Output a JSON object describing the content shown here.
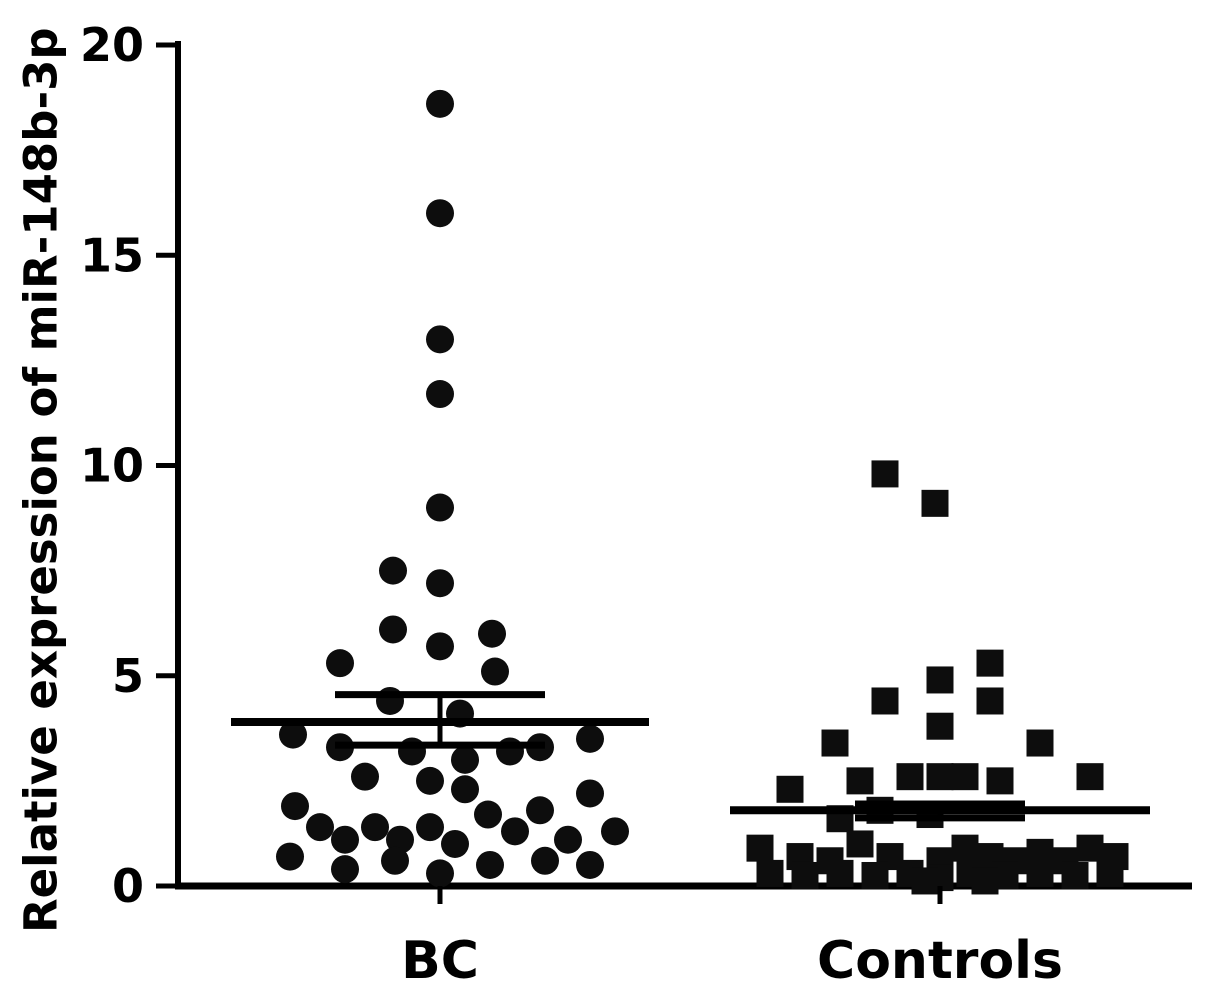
{
  "chart_data": {
    "type": "scatter",
    "title": "",
    "ylabel": "Relative expression of miR-148b-3p",
    "xlabel": "",
    "ylim": [
      0,
      20
    ],
    "yticks": [
      "0",
      "5",
      "10",
      "15",
      "20"
    ],
    "grid": false,
    "legend": "none",
    "marker_color": "#0d0d0d",
    "axis_color": "#000000",
    "groups": [
      {
        "label": "BC",
        "marker": "circle",
        "mean": 3.9,
        "err_upper": 4.55,
        "err_lower": 3.35,
        "points": [
          [
            0,
            18.6
          ],
          [
            0,
            16.0
          ],
          [
            0,
            13.0
          ],
          [
            0,
            11.7
          ],
          [
            0,
            9.0
          ],
          [
            -47,
            7.5
          ],
          [
            0,
            7.2
          ],
          [
            -47,
            6.1
          ],
          [
            52,
            6.0
          ],
          [
            0,
            5.7
          ],
          [
            -100,
            5.3
          ],
          [
            55,
            5.1
          ],
          [
            -50,
            4.4
          ],
          [
            20,
            4.1
          ],
          [
            -147,
            3.6
          ],
          [
            150,
            3.5
          ],
          [
            -100,
            3.3
          ],
          [
            100,
            3.3
          ],
          [
            -28,
            3.2
          ],
          [
            70,
            3.2
          ],
          [
            25,
            3.0
          ],
          [
            -75,
            2.6
          ],
          [
            -10,
            2.5
          ],
          [
            25,
            2.3
          ],
          [
            150,
            2.2
          ],
          [
            -145,
            1.9
          ],
          [
            100,
            1.8
          ],
          [
            48,
            1.7
          ],
          [
            -120,
            1.4
          ],
          [
            -65,
            1.4
          ],
          [
            -10,
            1.4
          ],
          [
            175,
            1.3
          ],
          [
            75,
            1.3
          ],
          [
            -95,
            1.1
          ],
          [
            -40,
            1.1
          ],
          [
            128,
            1.1
          ],
          [
            15,
            1.0
          ],
          [
            -150,
            0.7
          ],
          [
            -45,
            0.6
          ],
          [
            105,
            0.6
          ],
          [
            50,
            0.5
          ],
          [
            150,
            0.5
          ],
          [
            -95,
            0.4
          ],
          [
            0,
            0.3
          ]
        ]
      },
      {
        "label": "Controls",
        "marker": "square",
        "mean": 1.8,
        "err_upper": 1.95,
        "err_lower": 1.62,
        "points": [
          [
            -55,
            9.8
          ],
          [
            -5,
            9.1
          ],
          [
            50,
            5.3
          ],
          [
            0,
            4.9
          ],
          [
            -55,
            4.4
          ],
          [
            50,
            4.4
          ],
          [
            0,
            3.8
          ],
          [
            -105,
            3.4
          ],
          [
            100,
            3.4
          ],
          [
            -150,
            2.3
          ],
          [
            -80,
            2.5
          ],
          [
            -30,
            2.6
          ],
          [
            0,
            2.6
          ],
          [
            25,
            2.6
          ],
          [
            60,
            2.5
          ],
          [
            150,
            2.6
          ],
          [
            -100,
            1.6
          ],
          [
            -60,
            1.8
          ],
          [
            -10,
            1.7
          ],
          [
            -180,
            0.9
          ],
          [
            -80,
            1.0
          ],
          [
            25,
            0.9
          ],
          [
            150,
            0.9
          ],
          [
            100,
            0.8
          ],
          [
            -140,
            0.7
          ],
          [
            -50,
            0.7
          ],
          [
            50,
            0.7
          ],
          [
            175,
            0.7
          ],
          [
            -110,
            0.6
          ],
          [
            0,
            0.6
          ],
          [
            75,
            0.6
          ],
          [
            125,
            0.6
          ],
          [
            -170,
            0.3
          ],
          [
            -135,
            0.25
          ],
          [
            -100,
            0.3
          ],
          [
            -65,
            0.25
          ],
          [
            -30,
            0.3
          ],
          [
            0,
            0.2
          ],
          [
            30,
            0.3
          ],
          [
            65,
            0.25
          ],
          [
            100,
            0.3
          ],
          [
            135,
            0.25
          ],
          [
            170,
            0.3
          ],
          [
            -15,
            0.12
          ],
          [
            45,
            0.12
          ]
        ]
      }
    ]
  }
}
